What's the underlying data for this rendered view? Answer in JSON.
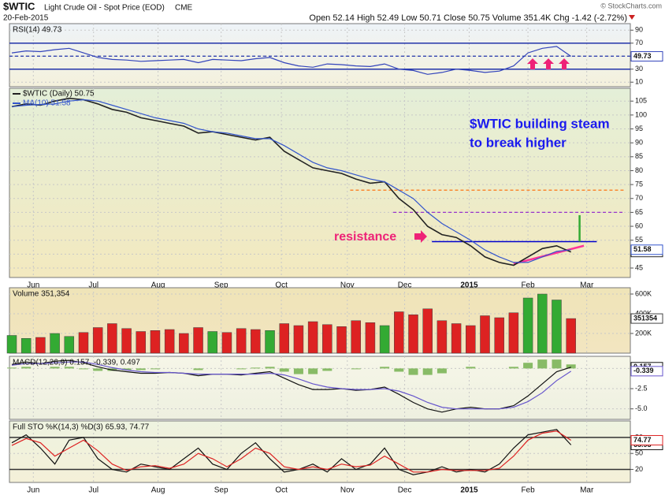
{
  "header": {
    "symbol": "$WTIC",
    "name": "Light Crude Oil - Spot Price (EOD)",
    "exchange": "CME",
    "date": "20-Feb-2015",
    "quote": "Open 52.14  High 52.49  Low 50.71  Close 50.75  Volume 351.4K  Chg -1.42 (-2.72%)",
    "watermark": "© StockCharts.com"
  },
  "annotations": {
    "headline_1": "$WTIC building steam",
    "headline_2": "to break higher",
    "resistance": "resistance"
  },
  "chart_data": [
    {
      "type": "line",
      "title": "RSI(14) 49.73",
      "ylim": [
        3,
        100
      ],
      "yticks": [
        90,
        70,
        50,
        30,
        10
      ],
      "grid": true,
      "reference_lines": [
        {
          "value": 70,
          "color": "#2233aa",
          "style": "solid"
        },
        {
          "value": 50,
          "color": "#2233aa",
          "style": "dashed"
        },
        {
          "value": 30,
          "color": "#2233aa",
          "style": "solid"
        }
      ],
      "series": [
        {
          "name": "RSI(14)",
          "color": "#3344bb",
          "values": [
            55,
            58,
            57,
            60,
            62,
            55,
            48,
            45,
            44,
            42,
            43,
            44,
            45,
            40,
            45,
            44,
            43,
            46,
            48,
            40,
            35,
            33,
            38,
            37,
            35,
            34,
            38,
            30,
            28,
            22,
            25,
            30,
            28,
            25,
            27,
            35,
            55,
            62,
            65,
            49.73
          ]
        }
      ]
    },
    {
      "type": "line",
      "title": "$WTIC (Daily) 50.75",
      "ylim": [
        41.6,
        109.6
      ],
      "yticks": [
        105,
        100,
        95,
        90,
        85,
        80,
        75,
        70,
        65,
        60,
        55,
        50,
        45
      ],
      "grid": true,
      "xlim": [
        0,
        42.7
      ],
      "xticks": [
        {
          "value": 1.5,
          "label": "Jun"
        },
        {
          "value": 5.7,
          "label": "Jul"
        },
        {
          "value": 10.2,
          "label": "Aug"
        },
        {
          "value": 14.6,
          "label": "Sep"
        },
        {
          "value": 18.8,
          "label": "Oct"
        },
        {
          "value": 23.4,
          "label": "Nov"
        },
        {
          "value": 27.4,
          "label": "Dec"
        },
        {
          "value": 31.9,
          "label": "2015"
        },
        {
          "value": 36,
          "label": "Feb"
        },
        {
          "value": 40.1,
          "label": "Mar"
        }
      ],
      "reference_lines": [
        {
          "value": 73,
          "color": "#ff6600",
          "style": "dashed",
          "x_range": [
            23.6,
            42.7
          ]
        },
        {
          "value": 65,
          "color": "#9933cc",
          "style": "dashed",
          "x_range": [
            26.6,
            42.7
          ]
        },
        {
          "value": 54.5,
          "color": "#0000cc",
          "style": "solid",
          "x_range": [
            29.3,
            40.8
          ]
        }
      ],
      "trendlines": [
        {
          "color": "#ff3399",
          "points": [
            [
              35,
              46.5
            ],
            [
              39.9,
              53
            ]
          ]
        },
        {
          "color": "#33aa33",
          "points": [
            [
              39.6,
              54.5
            ],
            [
              39.6,
              64
            ]
          ]
        }
      ],
      "series": [
        {
          "name": "$WTIC (Daily) 50.75",
          "color": "#222222",
          "values": [
            103,
            104,
            103.5,
            105,
            106,
            105.5,
            104,
            102,
            101,
            99,
            98,
            97,
            96,
            93.5,
            94,
            93,
            92,
            91,
            92,
            87,
            84,
            81,
            80,
            79,
            77,
            75.5,
            76,
            70,
            66,
            60,
            57,
            56,
            53,
            49,
            47,
            46,
            49,
            52,
            53,
            50.75
          ]
        },
        {
          "name": "MA(10) 51.58",
          "color": "#3355cc",
          "values": [
            103,
            103.5,
            103.8,
            104,
            105,
            105.5,
            105,
            103.5,
            102,
            100.5,
            99,
            98,
            97,
            95,
            94,
            93.5,
            92.5,
            91.5,
            91.5,
            89,
            86,
            83,
            81,
            80,
            78.5,
            77,
            76,
            73,
            70,
            65,
            61,
            58,
            55,
            51.5,
            49,
            47,
            47,
            49,
            51,
            51.58
          ]
        }
      ]
    },
    {
      "type": "bar",
      "title": "Volume 351,354",
      "ylim": [
        0,
        664000
      ],
      "yticks": [
        {
          "value": 200000,
          "label": "200K"
        },
        {
          "value": 400000,
          "label": "400K"
        },
        {
          "value": 600000,
          "label": "600K"
        }
      ],
      "grid": true,
      "up_color": "#33aa33",
      "down_color": "#dd2222",
      "series": [
        {
          "name": "Volume",
          "color": "#cccccc",
          "values": [
            180000,
            150000,
            160000,
            200000,
            170000,
            210000,
            260000,
            300000,
            250000,
            220000,
            230000,
            240000,
            200000,
            260000,
            220000,
            210000,
            250000,
            240000,
            230000,
            300000,
            280000,
            320000,
            290000,
            270000,
            330000,
            310000,
            280000,
            420000,
            390000,
            450000,
            330000,
            300000,
            280000,
            380000,
            360000,
            410000,
            560000,
            600000,
            540000,
            351354
          ]
        }
      ]
    },
    {
      "type": "line",
      "title": "MACD(12,26,9) 0.157, -0.339, 0.497",
      "ylim": [
        -6.3,
        1.5
      ],
      "yticks": [
        {
          "value": 0,
          "label": "0.0"
        },
        -2.5,
        {
          "value": -5,
          "label": "-5.0"
        }
      ],
      "grid": true,
      "series": [
        {
          "name": "Histogram",
          "kind": "bar",
          "color": "#88bb66",
          "values": [
            0.1,
            0.2,
            0,
            0.2,
            0.2,
            -0.1,
            -0.3,
            -0.3,
            -0.2,
            -0.2,
            -0.1,
            0,
            0,
            -0.2,
            0,
            0,
            -0.1,
            0.1,
            0.2,
            -0.4,
            -0.7,
            -0.7,
            -0.3,
            0,
            -0.1,
            0,
            0.2,
            -0.4,
            -0.8,
            -0.8,
            -0.6,
            0,
            0.2,
            0,
            0,
            0.2,
            0.7,
            1.1,
            1.1,
            0.497
          ]
        },
        {
          "name": "MACD",
          "color": "#111111",
          "values": [
            0.5,
            0.8,
            0.6,
            0.9,
            1.0,
            0.7,
            0.2,
            -0.2,
            -0.4,
            -0.6,
            -0.6,
            -0.5,
            -0.6,
            -0.9,
            -0.7,
            -0.7,
            -0.8,
            -0.6,
            -0.4,
            -1.2,
            -2.0,
            -2.6,
            -2.6,
            -2.5,
            -2.7,
            -2.6,
            -2.3,
            -3.2,
            -4.2,
            -5.0,
            -5.4,
            -5.0,
            -4.8,
            -5.0,
            -5.0,
            -4.6,
            -3.4,
            -1.9,
            -0.4,
            0.157
          ]
        },
        {
          "name": "Signal",
          "color": "#6655cc",
          "values": [
            0.4,
            0.6,
            0.6,
            0.7,
            0.8,
            0.8,
            0.5,
            0.1,
            -0.2,
            -0.4,
            -0.5,
            -0.5,
            -0.6,
            -0.7,
            -0.7,
            -0.7,
            -0.7,
            -0.7,
            -0.6,
            -0.8,
            -1.3,
            -1.9,
            -2.3,
            -2.5,
            -2.6,
            -2.6,
            -2.5,
            -2.8,
            -3.4,
            -4.2,
            -4.8,
            -5.0,
            -5.0,
            -5.0,
            -5.0,
            -4.8,
            -4.1,
            -3.0,
            -1.5,
            -0.339
          ]
        }
      ]
    },
    {
      "type": "line",
      "title": "Full STO %K(14,3) %D(3) 65.93, 74.77",
      "ylim": [
        -4.5,
        111
      ],
      "yticks": [
        80,
        50,
        20
      ],
      "grid": true,
      "xlim": [
        0,
        42.7
      ],
      "xticks": [
        {
          "value": 1.5,
          "label": "Jun"
        },
        {
          "value": 5.7,
          "label": "Jul"
        },
        {
          "value": 10.2,
          "label": "Aug"
        },
        {
          "value": 14.6,
          "label": "Sep"
        },
        {
          "value": 18.8,
          "label": "Oct"
        },
        {
          "value": 23.4,
          "label": "Nov"
        },
        {
          "value": 27.4,
          "label": "Dec"
        },
        {
          "value": 31.9,
          "label": "2015"
        },
        {
          "value": 36,
          "label": "Feb"
        },
        {
          "value": 40.1,
          "label": "Mar"
        }
      ],
      "reference_lines": [
        {
          "value": 80,
          "color": "#333333",
          "style": "solid"
        },
        {
          "value": 20,
          "color": "#333333",
          "style": "solid"
        }
      ],
      "series": [
        {
          "name": "%K",
          "color": "#111111",
          "values": [
            70,
            85,
            60,
            30,
            75,
            80,
            40,
            20,
            15,
            30,
            25,
            20,
            40,
            60,
            30,
            20,
            50,
            70,
            40,
            15,
            20,
            30,
            15,
            40,
            20,
            30,
            60,
            20,
            10,
            15,
            25,
            15,
            20,
            15,
            30,
            60,
            85,
            90,
            95,
            65.93
          ]
        },
        {
          "name": "%D",
          "color": "#dd2222",
          "values": [
            65,
            78,
            70,
            45,
            60,
            75,
            55,
            30,
            18,
            25,
            27,
            22,
            30,
            50,
            40,
            25,
            40,
            60,
            50,
            25,
            20,
            25,
            20,
            30,
            25,
            28,
            45,
            30,
            15,
            15,
            20,
            18,
            18,
            18,
            22,
            45,
            75,
            88,
            92,
            74.77
          ]
        }
      ]
    }
  ]
}
